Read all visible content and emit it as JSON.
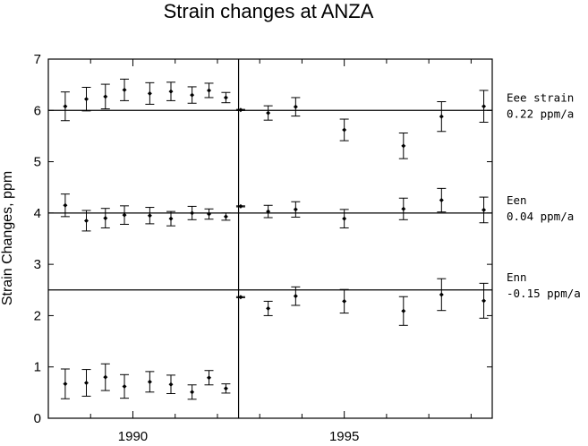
{
  "chart_data": {
    "type": "scatter",
    "title": "Strain changes at ANZA",
    "xlabel": "",
    "ylabel": "Strain Changes, ppm",
    "xlim": [
      1988.0,
      1998.5
    ],
    "ylim": [
      0,
      7
    ],
    "x_ticks": [
      1990,
      1995
    ],
    "x_tick_labels": [
      "1990",
      "1995"
    ],
    "y_ticks": [
      0,
      1,
      2,
      3,
      4,
      5,
      6,
      7
    ],
    "y_tick_labels": [
      "0",
      "1",
      "2",
      "3",
      "4",
      "5",
      "6",
      "7"
    ],
    "event_line_x": 1992.5,
    "series": [
      {
        "label_lines": [
          "Eee strain",
          "0.22 ppm/a"
        ],
        "reference_level": 6.0,
        "points": [
          {
            "x": 1988.4,
            "y": 6.08,
            "err": 0.28
          },
          {
            "x": 1988.9,
            "y": 6.22,
            "err": 0.23
          },
          {
            "x": 1989.35,
            "y": 6.27,
            "err": 0.24
          },
          {
            "x": 1989.8,
            "y": 6.4,
            "err": 0.21
          },
          {
            "x": 1990.4,
            "y": 6.33,
            "err": 0.21
          },
          {
            "x": 1990.9,
            "y": 6.37,
            "err": 0.18
          },
          {
            "x": 1991.4,
            "y": 6.3,
            "err": 0.16
          },
          {
            "x": 1991.8,
            "y": 6.39,
            "err": 0.14
          },
          {
            "x": 1992.2,
            "y": 6.25,
            "err": 0.1
          },
          {
            "x": 1992.55,
            "y": 6.01,
            "err": 0.01
          },
          {
            "x": 1993.2,
            "y": 5.95,
            "err": 0.14
          },
          {
            "x": 1993.85,
            "y": 6.07,
            "err": 0.18
          },
          {
            "x": 1995.0,
            "y": 5.62,
            "err": 0.21
          },
          {
            "x": 1996.4,
            "y": 5.31,
            "err": 0.25
          },
          {
            "x": 1997.3,
            "y": 5.88,
            "err": 0.29
          },
          {
            "x": 1998.3,
            "y": 6.08,
            "err": 0.31
          }
        ]
      },
      {
        "label_lines": [
          "Een",
          "0.04 ppm/a"
        ],
        "reference_level": 4.0,
        "points": [
          {
            "x": 1988.4,
            "y": 4.15,
            "err": 0.22
          },
          {
            "x": 1988.9,
            "y": 3.85,
            "err": 0.2
          },
          {
            "x": 1989.35,
            "y": 3.9,
            "err": 0.19
          },
          {
            "x": 1989.8,
            "y": 3.96,
            "err": 0.18
          },
          {
            "x": 1990.4,
            "y": 3.95,
            "err": 0.16
          },
          {
            "x": 1990.9,
            "y": 3.89,
            "err": 0.14
          },
          {
            "x": 1991.4,
            "y": 4.0,
            "err": 0.13
          },
          {
            "x": 1991.8,
            "y": 3.98,
            "err": 0.1
          },
          {
            "x": 1992.2,
            "y": 3.93,
            "err": 0.07
          },
          {
            "x": 1992.55,
            "y": 4.13,
            "err": 0.01
          },
          {
            "x": 1993.2,
            "y": 4.03,
            "err": 0.12
          },
          {
            "x": 1993.85,
            "y": 4.07,
            "err": 0.15
          },
          {
            "x": 1995.0,
            "y": 3.89,
            "err": 0.18
          },
          {
            "x": 1996.4,
            "y": 4.08,
            "err": 0.21
          },
          {
            "x": 1997.3,
            "y": 4.25,
            "err": 0.23
          },
          {
            "x": 1998.3,
            "y": 4.06,
            "err": 0.25
          }
        ]
      },
      {
        "label_lines": [
          "Enn",
          "-0.15 ppm/a"
        ],
        "reference_level": 2.5,
        "points": [
          {
            "x": 1988.4,
            "y": 0.67,
            "err": 0.29
          },
          {
            "x": 1988.9,
            "y": 0.69,
            "err": 0.26
          },
          {
            "x": 1989.35,
            "y": 0.8,
            "err": 0.26
          },
          {
            "x": 1989.8,
            "y": 0.62,
            "err": 0.23
          },
          {
            "x": 1990.4,
            "y": 0.71,
            "err": 0.2
          },
          {
            "x": 1990.9,
            "y": 0.66,
            "err": 0.18
          },
          {
            "x": 1991.4,
            "y": 0.51,
            "err": 0.14
          },
          {
            "x": 1991.8,
            "y": 0.79,
            "err": 0.14
          },
          {
            "x": 1992.2,
            "y": 0.58,
            "err": 0.09
          },
          {
            "x": 1992.55,
            "y": 2.36,
            "err": 0.01
          },
          {
            "x": 1993.2,
            "y": 2.14,
            "err": 0.14
          },
          {
            "x": 1993.85,
            "y": 2.38,
            "err": 0.18
          },
          {
            "x": 1995.0,
            "y": 2.28,
            "err": 0.23
          },
          {
            "x": 1996.4,
            "y": 2.09,
            "err": 0.28
          },
          {
            "x": 1997.3,
            "y": 2.41,
            "err": 0.31
          },
          {
            "x": 1998.3,
            "y": 2.29,
            "err": 0.34
          }
        ]
      }
    ]
  }
}
